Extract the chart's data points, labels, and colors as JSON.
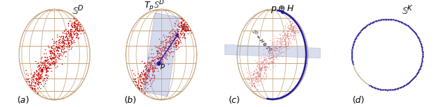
{
  "fig_width": 6.4,
  "fig_height": 1.54,
  "dpi": 100,
  "sphere_color": "#c8a882",
  "sphere_lw": 0.6,
  "red_dot_color": "#cc0000",
  "blue_dot_color": "#1a1aaa",
  "blue_curve_color": "#1a1aaa",
  "plane_color": "#8899cc",
  "plane_alpha": 0.35,
  "label_color": "#000000",
  "label_fontsize": 9
}
